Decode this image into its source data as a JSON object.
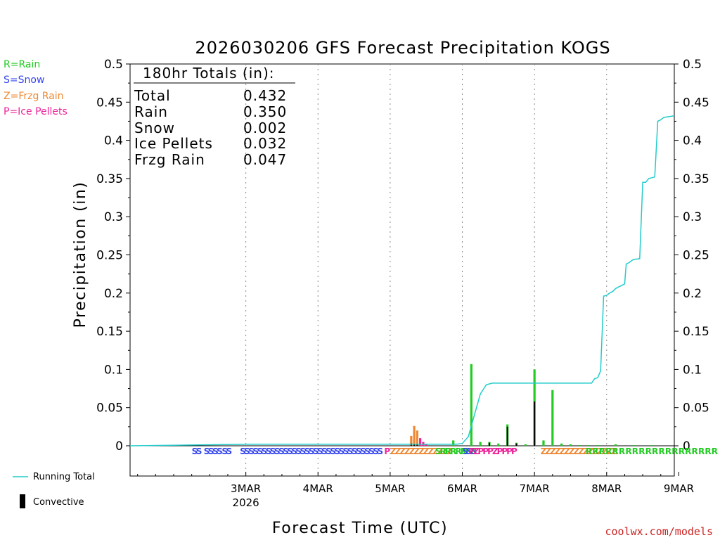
{
  "chart_data": {
    "type": "bar",
    "title": "2026030206 GFS Forecast Precipitation KOGS",
    "xlabel": "Forecast Time (UTC)",
    "ylabel": "Precipitation (in)",
    "ylim": [
      0,
      0.5
    ],
    "yticks": [
      "0",
      "0.05",
      "0.1",
      "0.15",
      "0.2",
      "0.25",
      "0.3",
      "0.35",
      "0.4",
      "0.45",
      "0.5"
    ],
    "xlim_hours": [
      -20.5,
      160.5
    ],
    "xtick_labels": [
      {
        "label": "3MAR",
        "sub": "2026",
        "hour": 18
      },
      {
        "label": "4MAR",
        "hour": 42
      },
      {
        "label": "5MAR",
        "hour": 66
      },
      {
        "label": "6MAR",
        "hour": 90
      },
      {
        "label": "7MAR",
        "hour": 114
      },
      {
        "label": "8MAR",
        "hour": 138
      },
      {
        "label": "9MAR",
        "hour": 162
      }
    ],
    "totals_box": {
      "heading": "180hr Totals (in):",
      "rows": [
        {
          "label": "Total",
          "value": "0.432"
        },
        {
          "label": "Rain",
          "value": "0.350"
        },
        {
          "label": "Snow",
          "value": "0.002"
        },
        {
          "label": "Ice Pellets",
          "value": "0.032"
        },
        {
          "label": "Frzg Rain",
          "value": "0.047"
        }
      ]
    },
    "type_legend": [
      {
        "label": "R=Rain",
        "color": "#22cc22"
      },
      {
        "label": "S=Snow",
        "color": "#3344ee"
      },
      {
        "label": "Z=Frzg Rain",
        "color": "#ee8833"
      },
      {
        "label": "P=Ice Pellets",
        "color": "#ee2299"
      }
    ],
    "series_legend": [
      {
        "label": "Running Total",
        "color": "#22cccc"
      },
      {
        "label": "Convective",
        "color": "#000000"
      }
    ],
    "bars": [
      {
        "hour": 73,
        "value": 0.013,
        "type": "Z"
      },
      {
        "hour": 74,
        "value": 0.026,
        "type": "Z"
      },
      {
        "hour": 75,
        "value": 0.02,
        "type": "Z"
      },
      {
        "hour": 76,
        "value": 0.01,
        "type": "P"
      },
      {
        "hour": 77,
        "value": 0.005,
        "type": "P"
      },
      {
        "hour": 78,
        "value": 0.002,
        "type": "P"
      },
      {
        "hour": 87,
        "value": 0.007,
        "type": "R"
      },
      {
        "hour": 93,
        "value": 0.107,
        "type": "R"
      },
      {
        "hour": 96,
        "value": 0.005,
        "type": "R"
      },
      {
        "hour": 99,
        "value": 0.005,
        "type": "R"
      },
      {
        "hour": 102,
        "value": 0.003,
        "type": "R"
      },
      {
        "hour": 105,
        "value": 0.028,
        "type": "R"
      },
      {
        "hour": 108,
        "value": 0.004,
        "type": "R"
      },
      {
        "hour": 111,
        "value": 0.002,
        "type": "R"
      },
      {
        "hour": 114,
        "value": 0.1,
        "type": "R"
      },
      {
        "hour": 117,
        "value": 0.007,
        "type": "R"
      },
      {
        "hour": 120,
        "value": 0.073,
        "type": "R"
      },
      {
        "hour": 123,
        "value": 0.003,
        "type": "R"
      },
      {
        "hour": 126,
        "value": 0.002,
        "type": "R"
      },
      {
        "hour": 129,
        "value": 0.001,
        "type": "R"
      },
      {
        "hour": 132,
        "value": 0.001,
        "type": "R"
      },
      {
        "hour": 135,
        "value": 0.001,
        "type": "R"
      },
      {
        "hour": 141,
        "value": 0.002,
        "type": "R"
      },
      {
        "hour": 147,
        "value": 0.001,
        "type": "R"
      },
      {
        "hour": 153,
        "value": 0.001,
        "type": "R"
      }
    ],
    "convective": [
      {
        "hour": 73,
        "value": 0.003
      },
      {
        "hour": 74,
        "value": 0.002
      },
      {
        "hour": 75,
        "value": 0.002
      },
      {
        "hour": 99,
        "value": 0.004
      },
      {
        "hour": 105,
        "value": 0.025
      },
      {
        "hour": 108,
        "value": 0.003
      },
      {
        "hour": 114,
        "value": 0.058
      }
    ],
    "running_total": [
      [
        -20.5,
        0
      ],
      [
        20,
        0.002
      ],
      [
        88,
        0.002
      ],
      [
        90,
        0.003
      ],
      [
        92,
        0.012
      ],
      [
        94,
        0.04
      ],
      [
        96,
        0.068
      ],
      [
        98,
        0.08
      ],
      [
        100,
        0.082
      ],
      [
        133,
        0.082
      ],
      [
        134,
        0.088
      ],
      [
        135,
        0.089
      ],
      [
        136,
        0.098
      ],
      [
        137,
        0.196
      ],
      [
        138,
        0.197
      ],
      [
        139,
        0.2
      ],
      [
        140,
        0.202
      ],
      [
        141,
        0.206
      ],
      [
        142,
        0.208
      ],
      [
        143,
        0.21
      ],
      [
        144,
        0.212
      ],
      [
        144.5,
        0.238
      ],
      [
        145.5,
        0.24
      ],
      [
        146.5,
        0.243
      ],
      [
        147,
        0.244
      ],
      [
        149,
        0.245
      ],
      [
        150,
        0.345
      ],
      [
        151,
        0.345
      ],
      [
        152,
        0.35
      ],
      [
        153,
        0.351
      ],
      [
        154,
        0.352
      ],
      [
        155,
        0.425
      ],
      [
        156,
        0.427
      ],
      [
        157,
        0.43
      ],
      [
        160.5,
        0.432
      ]
    ],
    "type_codes": [
      {
        "hour": 0,
        "code": "SS",
        "color": "#3344ee"
      },
      {
        "hour": 4,
        "code": "SSSS",
        "color": "#3344ee"
      },
      {
        "hour": 10,
        "code": "SS",
        "color": "#3344ee"
      },
      {
        "hour": 16,
        "code": "SSSSSSSSSSSSSSSSSSSSSSSSSSSSSSSSS",
        "color": "#3344ee"
      },
      {
        "hour": 64,
        "code": "P",
        "color": "#ee2299"
      },
      {
        "hour": 66,
        "code": "ZZZZZZZZZZZZZ",
        "color": "#ee8833"
      },
      {
        "hour": 81,
        "code": "SRRRRRRR",
        "color": "#22cc22"
      },
      {
        "hour": 90,
        "code": "SSS",
        "color": "#3344ee"
      },
      {
        "hour": 92,
        "code": "PZPPPZPPPP",
        "color": "#ee2299"
      },
      {
        "hour": 116,
        "code": "ZZZZZZZZZZZZZZZZ",
        "color": "#ee8833"
      },
      {
        "hour": 131,
        "code": "R R R R R R R R R R R R R R R R R R R R",
        "color": "#22cc22"
      }
    ]
  },
  "credit": "coolwx.com/models"
}
